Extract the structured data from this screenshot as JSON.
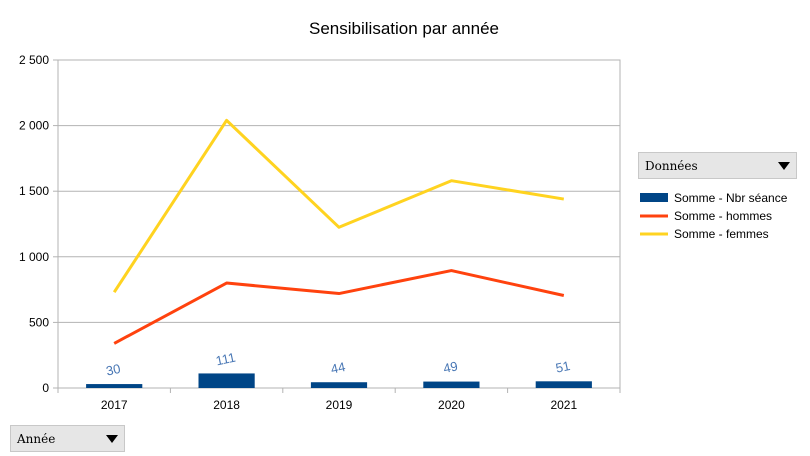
{
  "chart_data": {
    "type": "bar+line",
    "title": "Sensibilisation par année",
    "categories": [
      "2017",
      "2018",
      "2019",
      "2020",
      "2021"
    ],
    "series": [
      {
        "name": "Somme - Nbr séance",
        "kind": "bar",
        "color": "#004586",
        "values": [
          30,
          111,
          44,
          49,
          51
        ],
        "data_labels": true
      },
      {
        "name": "Somme - hommes",
        "kind": "line",
        "color": "#ff420e",
        "values": [
          340,
          800,
          720,
          895,
          705
        ]
      },
      {
        "name": "Somme - femmes",
        "kind": "line",
        "color": "#ffd320",
        "values": [
          730,
          2040,
          1225,
          1580,
          1440
        ]
      }
    ],
    "ylim": [
      0,
      2500
    ],
    "yticks": [
      0,
      500,
      1000,
      1500,
      2000,
      2500
    ],
    "ytick_labels": [
      "0",
      "500",
      "1 000",
      "1 500",
      "2 000",
      "2 500"
    ],
    "grid": true,
    "legend": "right",
    "data_label_color": "#4a78b5"
  },
  "controls": {
    "data_field_label": "Données",
    "category_field_label": "Année"
  }
}
